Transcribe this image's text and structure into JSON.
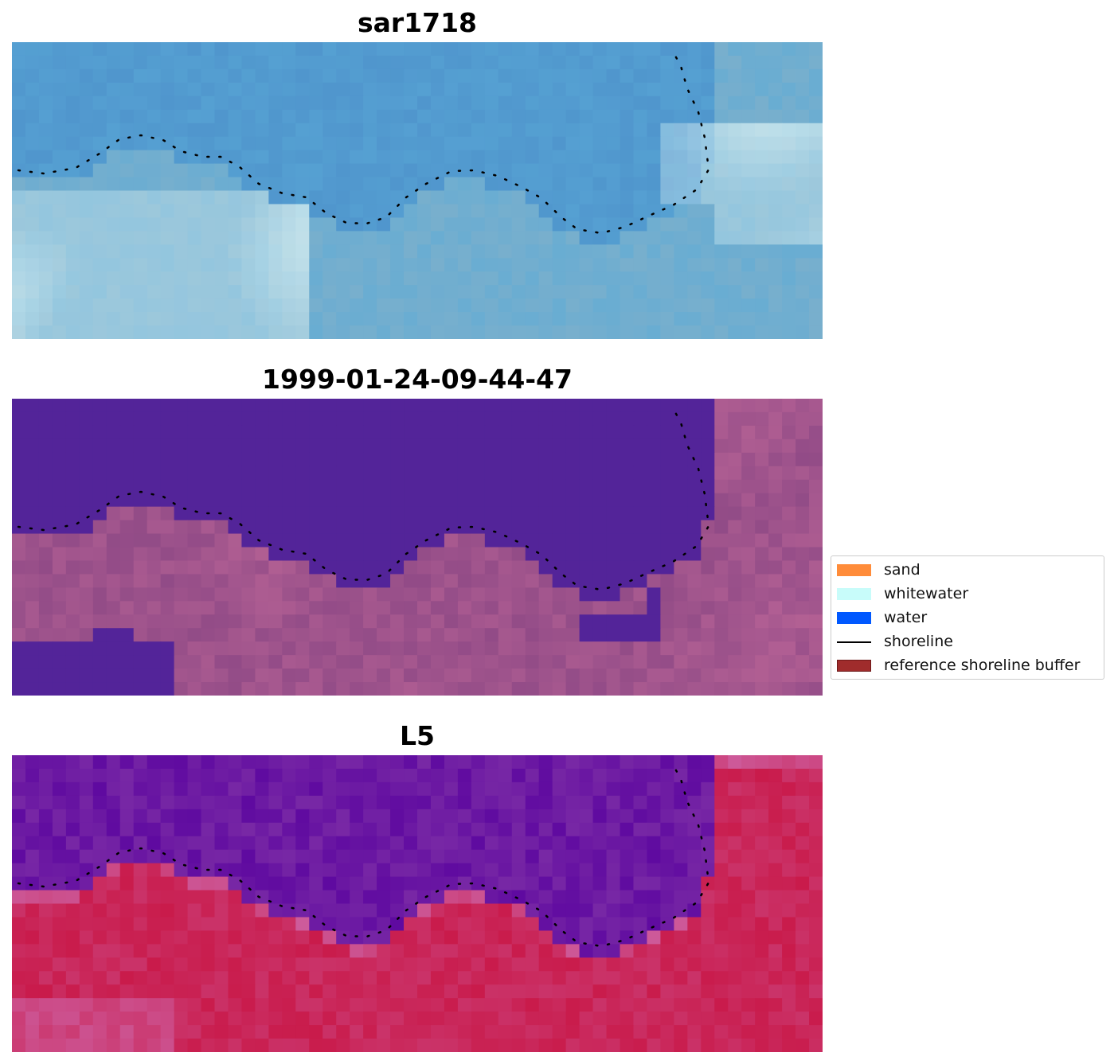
{
  "panels": [
    {
      "title": "sar1718",
      "style": "rgb"
    },
    {
      "title": "1999-01-24-09-44-47",
      "style": "classified"
    },
    {
      "title": "L5",
      "style": "index"
    }
  ],
  "legend": {
    "items": [
      {
        "label": "sand",
        "color": "#ff8c3a",
        "kind": "patch"
      },
      {
        "label": "whitewater",
        "color": "#c8fcfa",
        "kind": "patch"
      },
      {
        "label": "water",
        "color": "#0058ff",
        "kind": "patch"
      },
      {
        "label": "shoreline",
        "color": "#000000",
        "kind": "line"
      },
      {
        "label": "reference shoreline buffer",
        "color": "#a02c2c",
        "kind": "patch"
      }
    ]
  },
  "colors": {
    "water_class": "#532499",
    "sand_overlay": "#8a4a80",
    "index_low": "#5a0aa0",
    "index_high": "#c01a44"
  }
}
